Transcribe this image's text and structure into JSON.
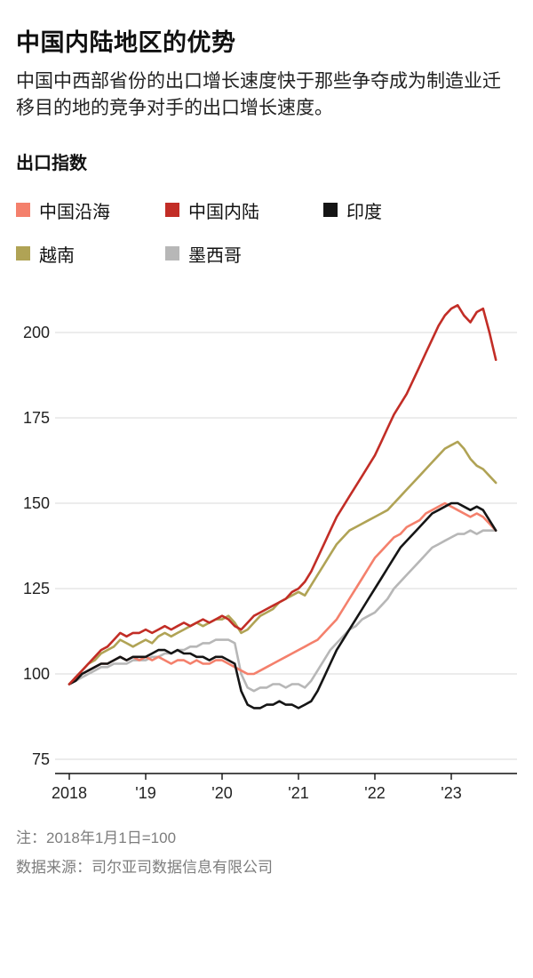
{
  "header": {
    "title": "中国内陆地区的优势",
    "subtitle": "中国中西部省份的出口增长速度快于那些争夺成为制造业迁移目的地的竞争对手的出口增长速度。"
  },
  "section_label": "出口指数",
  "notes": {
    "note": "注：2018年1月1日=100",
    "source": "数据来源：司尔亚司数据信息有限公司"
  },
  "colors": {
    "grid": "#d9d9d9",
    "axis": "#111111",
    "tick_label": "#222222"
  },
  "chart_data": {
    "type": "line",
    "title": "出口指数",
    "xlabel": "",
    "ylabel": "",
    "x_start_year": 2018,
    "x_step_months": 1,
    "xlim": [
      2018,
      2023.75
    ],
    "ylim": [
      70,
      215
    ],
    "yticks": [
      75,
      100,
      125,
      150,
      175,
      200
    ],
    "xticks": [
      {
        "t": 2018,
        "label": "2018"
      },
      {
        "t": 2019,
        "label": "'19"
      },
      {
        "t": 2020,
        "label": "'20"
      },
      {
        "t": 2021,
        "label": "'21"
      },
      {
        "t": 2022,
        "label": "'22"
      },
      {
        "t": 2023,
        "label": "'23"
      }
    ],
    "grid": true,
    "legend_position": "top",
    "series": [
      {
        "name": "中国沿海",
        "color": "#f4806c",
        "values": [
          97,
          99,
          100,
          101,
          102,
          103,
          103,
          104,
          105,
          104,
          105,
          104,
          105,
          104,
          105,
          104,
          103,
          104,
          104,
          103,
          104,
          103,
          103,
          104,
          104,
          103,
          102,
          101,
          100,
          100,
          101,
          102,
          103,
          104,
          105,
          106,
          107,
          108,
          109,
          110,
          112,
          114,
          116,
          119,
          122,
          125,
          128,
          131,
          134,
          136,
          138,
          140,
          141,
          143,
          144,
          145,
          147,
          148,
          149,
          150,
          149,
          148,
          147,
          146,
          147,
          146,
          144,
          142
        ]
      },
      {
        "name": "中国内陆",
        "color": "#c22d26",
        "values": [
          97,
          99,
          101,
          103,
          105,
          107,
          108,
          110,
          112,
          111,
          112,
          112,
          113,
          112,
          113,
          114,
          113,
          114,
          115,
          114,
          115,
          116,
          115,
          116,
          117,
          116,
          114,
          113,
          115,
          117,
          118,
          119,
          120,
          121,
          122,
          124,
          125,
          127,
          130,
          134,
          138,
          142,
          146,
          149,
          152,
          155,
          158,
          161,
          164,
          168,
          172,
          176,
          179,
          182,
          186,
          190,
          194,
          198,
          202,
          205,
          207,
          208,
          205,
          203,
          206,
          207,
          200,
          192
        ]
      },
      {
        "name": "印度",
        "color": "#151515",
        "values": [
          97,
          98,
          100,
          101,
          102,
          103,
          103,
          104,
          105,
          104,
          105,
          105,
          105,
          106,
          107,
          107,
          106,
          107,
          106,
          106,
          105,
          105,
          104,
          105,
          105,
          104,
          103,
          95,
          91,
          90,
          90,
          91,
          91,
          92,
          91,
          91,
          90,
          91,
          92,
          95,
          99,
          103,
          107,
          110,
          113,
          116,
          119,
          122,
          125,
          128,
          131,
          134,
          137,
          139,
          141,
          143,
          145,
          147,
          148,
          149,
          150,
          150,
          149,
          148,
          149,
          148,
          145,
          142
        ]
      },
      {
        "name": "越南",
        "color": "#b0a355",
        "values": [
          97,
          99,
          101,
          103,
          104,
          106,
          107,
          108,
          110,
          109,
          108,
          109,
          110,
          109,
          111,
          112,
          111,
          112,
          113,
          114,
          115,
          114,
          115,
          116,
          116,
          117,
          115,
          112,
          113,
          115,
          117,
          118,
          119,
          121,
          122,
          123,
          124,
          123,
          126,
          129,
          132,
          135,
          138,
          140,
          142,
          143,
          144,
          145,
          146,
          147,
          148,
          150,
          152,
          154,
          156,
          158,
          160,
          162,
          164,
          166,
          167,
          168,
          166,
          163,
          161,
          160,
          158,
          156
        ]
      },
      {
        "name": "墨西哥",
        "color": "#b7b7b7",
        "values": [
          97,
          98,
          99,
          100,
          101,
          102,
          102,
          103,
          103,
          103,
          104,
          104,
          104,
          105,
          105,
          106,
          106,
          107,
          107,
          108,
          108,
          109,
          109,
          110,
          110,
          110,
          109,
          100,
          96,
          95,
          96,
          96,
          97,
          97,
          96,
          97,
          97,
          96,
          98,
          101,
          104,
          107,
          109,
          111,
          113,
          114,
          116,
          117,
          118,
          120,
          122,
          125,
          127,
          129,
          131,
          133,
          135,
          137,
          138,
          139,
          140,
          141,
          141,
          142,
          141,
          142,
          142,
          142
        ]
      }
    ],
    "draw_order": [
      4,
      3,
      0,
      2,
      1
    ]
  }
}
